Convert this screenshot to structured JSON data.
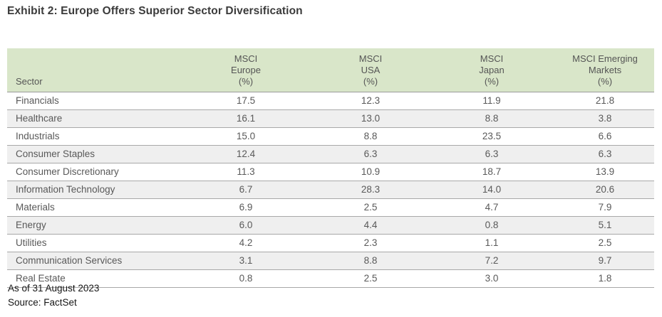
{
  "title": "Exhibit 2: Europe Offers Superior Sector Diversification",
  "table": {
    "header": {
      "sector": "Sector",
      "cols": [
        "MSCI\nEurope\n(%)",
        "MSCI\nUSA\n(%)",
        "MSCI\nJapan\n(%)",
        "MSCI Emerging\nMarkets\n(%)"
      ]
    },
    "rows": [
      {
        "sector": "Financials",
        "values": [
          "17.5",
          "12.3",
          "11.9",
          "21.8"
        ]
      },
      {
        "sector": "Healthcare",
        "values": [
          "16.1",
          "13.0",
          "8.8",
          "3.8"
        ]
      },
      {
        "sector": "Industrials",
        "values": [
          "15.0",
          "8.8",
          "23.5",
          "6.6"
        ]
      },
      {
        "sector": "Consumer Staples",
        "values": [
          "12.4",
          "6.3",
          "6.3",
          "6.3"
        ]
      },
      {
        "sector": "Consumer Discretionary",
        "values": [
          "11.3",
          "10.9",
          "18.7",
          "13.9"
        ]
      },
      {
        "sector": "Information Technology",
        "values": [
          "6.7",
          "28.3",
          "14.0",
          "20.6"
        ]
      },
      {
        "sector": "Materials",
        "values": [
          "6.9",
          "2.5",
          "4.7",
          "7.9"
        ]
      },
      {
        "sector": "Energy",
        "values": [
          "6.0",
          "4.4",
          "0.8",
          "5.1"
        ]
      },
      {
        "sector": "Utilities",
        "values": [
          "4.2",
          "2.3",
          "1.1",
          "2.5"
        ]
      },
      {
        "sector": "Communication Services",
        "values": [
          "3.1",
          "8.8",
          "7.2",
          "9.7"
        ]
      },
      {
        "sector": "Real Estate",
        "values": [
          "0.8",
          "2.5",
          "3.0",
          "1.8"
        ]
      }
    ]
  },
  "footnote": {
    "as_of": "As of 31 August 2023",
    "source": "Source: FactSet"
  },
  "colors": {
    "header_bg": "#d9e6c9",
    "alt_row_bg": "#efefef",
    "separator": "#a8a8a8",
    "table_text": "#595959",
    "title_text": "#3b3b3b"
  },
  "chart_data": {
    "type": "table",
    "title": "Exhibit 2: Europe Offers Superior Sector Diversification",
    "columns": [
      "Sector",
      "MSCI Europe (%)",
      "MSCI USA (%)",
      "MSCI Japan (%)",
      "MSCI Emerging Markets (%)"
    ],
    "rows": [
      [
        "Financials",
        17.5,
        12.3,
        11.9,
        21.8
      ],
      [
        "Healthcare",
        16.1,
        13.0,
        8.8,
        3.8
      ],
      [
        "Industrials",
        15.0,
        8.8,
        23.5,
        6.6
      ],
      [
        "Consumer Staples",
        12.4,
        6.3,
        6.3,
        6.3
      ],
      [
        "Consumer Discretionary",
        11.3,
        10.9,
        18.7,
        13.9
      ],
      [
        "Information Technology",
        6.7,
        28.3,
        14.0,
        20.6
      ],
      [
        "Materials",
        6.9,
        2.5,
        4.7,
        7.9
      ],
      [
        "Energy",
        6.0,
        4.4,
        0.8,
        5.1
      ],
      [
        "Utilities",
        4.2,
        2.3,
        1.1,
        2.5
      ],
      [
        "Communication Services",
        3.1,
        8.8,
        7.2,
        9.7
      ],
      [
        "Real Estate",
        0.8,
        2.5,
        3.0,
        1.8
      ]
    ],
    "notes": [
      "As of 31 August 2023",
      "Source: FactSet"
    ]
  }
}
